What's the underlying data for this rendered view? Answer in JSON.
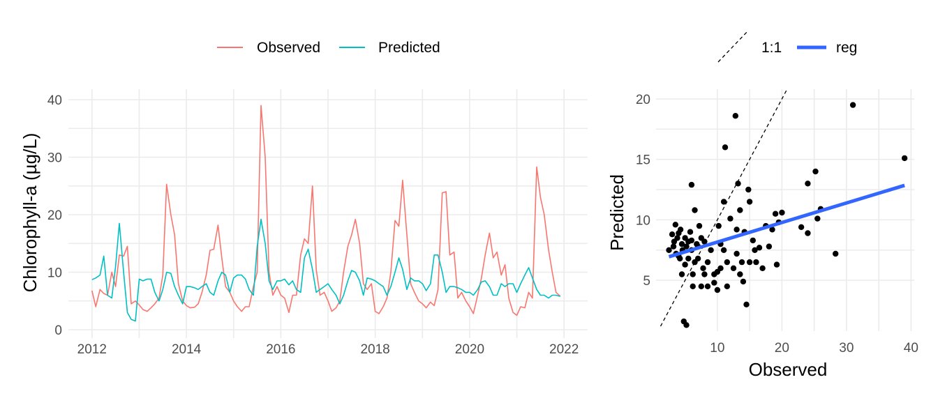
{
  "chart_data": [
    {
      "type": "line",
      "xlabel": "",
      "ylabel": "Chlorophyll-a (µg/L)",
      "xlim": [
        2011.5,
        2022.5
      ],
      "ylim": [
        0,
        40
      ],
      "x_ticks": [
        2012,
        2014,
        2016,
        2018,
        2020,
        2022
      ],
      "x_tick_labels": [
        "2012",
        "2014",
        "2016",
        "2018",
        "2020",
        "2022"
      ],
      "y_ticks": [
        0,
        10,
        20,
        30,
        40
      ],
      "y_tick_labels": [
        "0",
        "10",
        "20",
        "30",
        "40"
      ],
      "grid": true,
      "legend_position": "top",
      "series": [
        {
          "name": "Observed",
          "color": "#F8766D",
          "x": [
            2012.0,
            2012.08,
            2012.17,
            2012.25,
            2012.33,
            2012.42,
            2012.5,
            2012.58,
            2012.67,
            2012.75,
            2012.83,
            2012.92,
            2013.0,
            2013.08,
            2013.17,
            2013.25,
            2013.33,
            2013.42,
            2013.5,
            2013.58,
            2013.67,
            2013.75,
            2013.83,
            2013.92,
            2014.0,
            2014.08,
            2014.17,
            2014.25,
            2014.33,
            2014.42,
            2014.5,
            2014.58,
            2014.67,
            2014.75,
            2014.83,
            2014.92,
            2015.0,
            2015.08,
            2015.17,
            2015.25,
            2015.33,
            2015.42,
            2015.5,
            2015.58,
            2015.67,
            2015.75,
            2015.83,
            2015.92,
            2016.0,
            2016.08,
            2016.17,
            2016.25,
            2016.33,
            2016.42,
            2016.5,
            2016.58,
            2016.67,
            2016.75,
            2016.83,
            2016.92,
            2017.0,
            2017.08,
            2017.17,
            2017.25,
            2017.33,
            2017.42,
            2017.5,
            2017.58,
            2017.67,
            2017.75,
            2017.83,
            2017.92,
            2018.0,
            2018.08,
            2018.17,
            2018.25,
            2018.33,
            2018.42,
            2018.5,
            2018.58,
            2018.67,
            2018.75,
            2018.83,
            2018.92,
            2019.0,
            2019.08,
            2019.17,
            2019.25,
            2019.33,
            2019.42,
            2019.5,
            2019.58,
            2019.67,
            2019.75,
            2019.83,
            2019.92,
            2020.0,
            2020.08,
            2020.17,
            2020.25,
            2020.33,
            2020.42,
            2020.5,
            2020.58,
            2020.67,
            2020.75,
            2020.83,
            2020.92,
            2021.0,
            2021.08,
            2021.17,
            2021.25,
            2021.33,
            2021.42,
            2021.5,
            2021.58,
            2021.67,
            2021.75,
            2021.83,
            2021.92
          ],
          "values": [
            6.8,
            4.0,
            7.0,
            6.3,
            6.0,
            10.0,
            7.5,
            13.0,
            12.8,
            14.5,
            4.5,
            5.0,
            4.3,
            3.5,
            3.2,
            3.8,
            4.5,
            5.5,
            9.5,
            25.3,
            20.0,
            16.5,
            8.0,
            5.0,
            4.2,
            3.8,
            3.9,
            4.5,
            6.5,
            9.5,
            13.8,
            14.0,
            18.2,
            12.5,
            7.5,
            6.5,
            5.0,
            4.0,
            3.2,
            4.0,
            4.0,
            7.5,
            10.0,
            39.0,
            30.0,
            10.0,
            6.0,
            7.5,
            6.0,
            5.5,
            3.0,
            6.0,
            6.0,
            13.0,
            15.8,
            15.0,
            25.0,
            10.5,
            6.0,
            6.5,
            5.0,
            3.2,
            3.8,
            5.0,
            10.0,
            14.5,
            16.5,
            19.2,
            15.0,
            8.0,
            7.0,
            8.0,
            3.2,
            2.8,
            4.0,
            5.5,
            10.0,
            19.0,
            18.0,
            26.0,
            16.5,
            8.0,
            6.5,
            5.0,
            4.5,
            3.8,
            4.8,
            4.2,
            7.0,
            23.8,
            24.0,
            13.0,
            13.5,
            5.5,
            6.5,
            5.0,
            4.0,
            2.8,
            6.0,
            9.0,
            13.0,
            16.8,
            12.5,
            13.5,
            9.5,
            11.3,
            5.5,
            3.0,
            2.5,
            4.0,
            3.8,
            6.5,
            5.5,
            28.3,
            23.0,
            20.0,
            14.0,
            10.0,
            6.5,
            5.8
          ]
        },
        {
          "name": "Predicted",
          "color": "#00BFC4",
          "x": [
            2012.0,
            2012.08,
            2012.17,
            2012.25,
            2012.33,
            2012.42,
            2012.5,
            2012.58,
            2012.67,
            2012.75,
            2012.83,
            2012.92,
            2013.0,
            2013.08,
            2013.17,
            2013.25,
            2013.33,
            2013.42,
            2013.5,
            2013.58,
            2013.67,
            2013.75,
            2013.83,
            2013.92,
            2014.0,
            2014.08,
            2014.17,
            2014.25,
            2014.33,
            2014.42,
            2014.5,
            2014.58,
            2014.67,
            2014.75,
            2014.83,
            2014.92,
            2015.0,
            2015.08,
            2015.17,
            2015.25,
            2015.33,
            2015.42,
            2015.5,
            2015.58,
            2015.67,
            2015.75,
            2015.83,
            2015.92,
            2016.0,
            2016.08,
            2016.17,
            2016.25,
            2016.33,
            2016.42,
            2016.5,
            2016.58,
            2016.67,
            2016.75,
            2016.83,
            2016.92,
            2017.0,
            2017.08,
            2017.17,
            2017.25,
            2017.33,
            2017.42,
            2017.5,
            2017.58,
            2017.67,
            2017.75,
            2017.83,
            2017.92,
            2018.0,
            2018.08,
            2018.17,
            2018.25,
            2018.33,
            2018.42,
            2018.5,
            2018.58,
            2018.67,
            2018.75,
            2018.83,
            2018.92,
            2019.0,
            2019.08,
            2019.17,
            2019.25,
            2019.33,
            2019.42,
            2019.5,
            2019.58,
            2019.67,
            2019.75,
            2019.83,
            2019.92,
            2020.0,
            2020.08,
            2020.17,
            2020.25,
            2020.33,
            2020.42,
            2020.5,
            2020.58,
            2020.67,
            2020.75,
            2020.83,
            2020.92,
            2021.0,
            2021.08,
            2021.17,
            2021.25,
            2021.33,
            2021.42,
            2021.5,
            2021.58,
            2021.67,
            2021.75,
            2021.83,
            2021.92
          ],
          "values": [
            8.7,
            9.0,
            9.5,
            12.8,
            6.0,
            5.5,
            11.0,
            18.5,
            10.0,
            3.0,
            1.8,
            1.5,
            8.8,
            8.5,
            8.8,
            8.8,
            6.5,
            5.0,
            7.0,
            10.0,
            9.8,
            7.5,
            6.0,
            4.5,
            7.5,
            7.5,
            7.3,
            7.0,
            7.5,
            8.0,
            6.5,
            6.0,
            8.5,
            10.0,
            9.5,
            6.5,
            9.0,
            9.5,
            9.5,
            8.8,
            7.0,
            6.0,
            14.5,
            19.2,
            15.0,
            8.5,
            7.0,
            8.5,
            8.5,
            8.8,
            7.8,
            8.5,
            7.0,
            6.5,
            12.5,
            14.0,
            10.5,
            6.5,
            7.0,
            7.5,
            8.0,
            7.0,
            6.0,
            4.5,
            6.0,
            8.5,
            10.3,
            10.0,
            8.5,
            6.0,
            9.0,
            8.8,
            8.5,
            8.0,
            7.5,
            6.0,
            7.5,
            10.0,
            12.5,
            10.5,
            7.0,
            9.0,
            8.5,
            8.5,
            8.0,
            6.8,
            8.0,
            13.0,
            13.0,
            10.0,
            6.5,
            7.5,
            7.5,
            7.3,
            7.0,
            6.5,
            6.5,
            6.0,
            7.0,
            8.3,
            8.5,
            7.5,
            6.0,
            6.0,
            8.0,
            7.5,
            8.0,
            8.0,
            6.5,
            8.0,
            9.5,
            10.8,
            9.0,
            7.0,
            6.0,
            6.0,
            5.5,
            6.0,
            6.0,
            5.8
          ]
        }
      ]
    },
    {
      "type": "scatter",
      "xlabel": "Observed",
      "ylabel": "Predicted",
      "xlim": [
        0.5,
        40.5
      ],
      "ylim": [
        0.8,
        20.8
      ],
      "x_ticks": [
        10,
        20,
        30,
        40
      ],
      "x_tick_labels": [
        "10",
        "20",
        "30",
        "40"
      ],
      "y_ticks": [
        5,
        10,
        15,
        20
      ],
      "y_tick_labels": [
        "5",
        "10",
        "15",
        "20"
      ],
      "grid": true,
      "legend_position": "top",
      "legend": [
        {
          "label": "1:1",
          "style": "dashed",
          "color": "#000000"
        },
        {
          "label": "reg",
          "style": "solid",
          "color": "#3366FF"
        }
      ],
      "points_color": "#000000",
      "points": [
        [
          2.5,
          7.5
        ],
        [
          3.0,
          8.8
        ],
        [
          3.2,
          7.8
        ],
        [
          3.3,
          8.2
        ],
        [
          3.5,
          9.6
        ],
        [
          3.6,
          7.2
        ],
        [
          3.8,
          8.5
        ],
        [
          4.0,
          7.0
        ],
        [
          4.0,
          8.9
        ],
        [
          4.2,
          6.8
        ],
        [
          4.3,
          9.2
        ],
        [
          4.5,
          8.0
        ],
        [
          4.5,
          5.5
        ],
        [
          4.6,
          7.5
        ],
        [
          4.8,
          1.6
        ],
        [
          5.0,
          8.5
        ],
        [
          5.0,
          6.3
        ],
        [
          5.2,
          1.3
        ],
        [
          5.2,
          7.8
        ],
        [
          5.5,
          8.2
        ],
        [
          5.5,
          6.8
        ],
        [
          5.8,
          9.0
        ],
        [
          6.0,
          12.9
        ],
        [
          6.0,
          8.3
        ],
        [
          6.0,
          7.5
        ],
        [
          6.2,
          5.5
        ],
        [
          6.2,
          4.5
        ],
        [
          6.5,
          10.8
        ],
        [
          6.5,
          6.5
        ],
        [
          6.8,
          8.0
        ],
        [
          7.0,
          6.8
        ],
        [
          7.0,
          7.8
        ],
        [
          7.2,
          9.5
        ],
        [
          7.5,
          8.5
        ],
        [
          7.5,
          4.5
        ],
        [
          7.8,
          6.0
        ],
        [
          8.0,
          8.2
        ],
        [
          8.0,
          5.5
        ],
        [
          8.5,
          6.5
        ],
        [
          8.5,
          4.5
        ],
        [
          9.0,
          7.5
        ],
        [
          9.5,
          5.5
        ],
        [
          9.5,
          4.8
        ],
        [
          10.0,
          4.2
        ],
        [
          10.0,
          5.7
        ],
        [
          10.2,
          9.5
        ],
        [
          10.5,
          6.0
        ],
        [
          10.5,
          8.0
        ],
        [
          11.0,
          11.5
        ],
        [
          11.0,
          7.5
        ],
        [
          11.2,
          16.0
        ],
        [
          11.5,
          6.5
        ],
        [
          11.5,
          4.5
        ],
        [
          12.0,
          10.1
        ],
        [
          12.5,
          6.0
        ],
        [
          12.8,
          18.6
        ],
        [
          13.0,
          7.2
        ],
        [
          13.0,
          9.2
        ],
        [
          13.2,
          13.0
        ],
        [
          13.5,
          10.8
        ],
        [
          13.5,
          5.5
        ],
        [
          13.8,
          6.5
        ],
        [
          14.0,
          4.9
        ],
        [
          14.2,
          9.0
        ],
        [
          14.5,
          3.0
        ],
        [
          14.8,
          12.5
        ],
        [
          15.0,
          11.5
        ],
        [
          15.0,
          6.5
        ],
        [
          15.5,
          8.3
        ],
        [
          15.8,
          7.5
        ],
        [
          16.0,
          6.5
        ],
        [
          16.5,
          7.7
        ],
        [
          17.0,
          6.0
        ],
        [
          17.5,
          9.5
        ],
        [
          18.0,
          7.8
        ],
        [
          18.5,
          9.2
        ],
        [
          19.0,
          10.5
        ],
        [
          19.2,
          6.3
        ],
        [
          19.5,
          9.8
        ],
        [
          20.0,
          10.6
        ],
        [
          23.0,
          9.4
        ],
        [
          24.0,
          13.0
        ],
        [
          24.0,
          8.9
        ],
        [
          25.2,
          14.0
        ],
        [
          25.5,
          10.1
        ],
        [
          26.0,
          10.9
        ],
        [
          28.3,
          7.2
        ],
        [
          31.0,
          19.5
        ],
        [
          39.0,
          15.1
        ]
      ],
      "regression_line": {
        "x": [
          2.5,
          39.0
        ],
        "y": [
          6.95,
          12.85
        ]
      },
      "identity_line": {
        "x": [
          1.2,
          20.8
        ],
        "y": [
          1.2,
          20.8
        ]
      }
    }
  ]
}
